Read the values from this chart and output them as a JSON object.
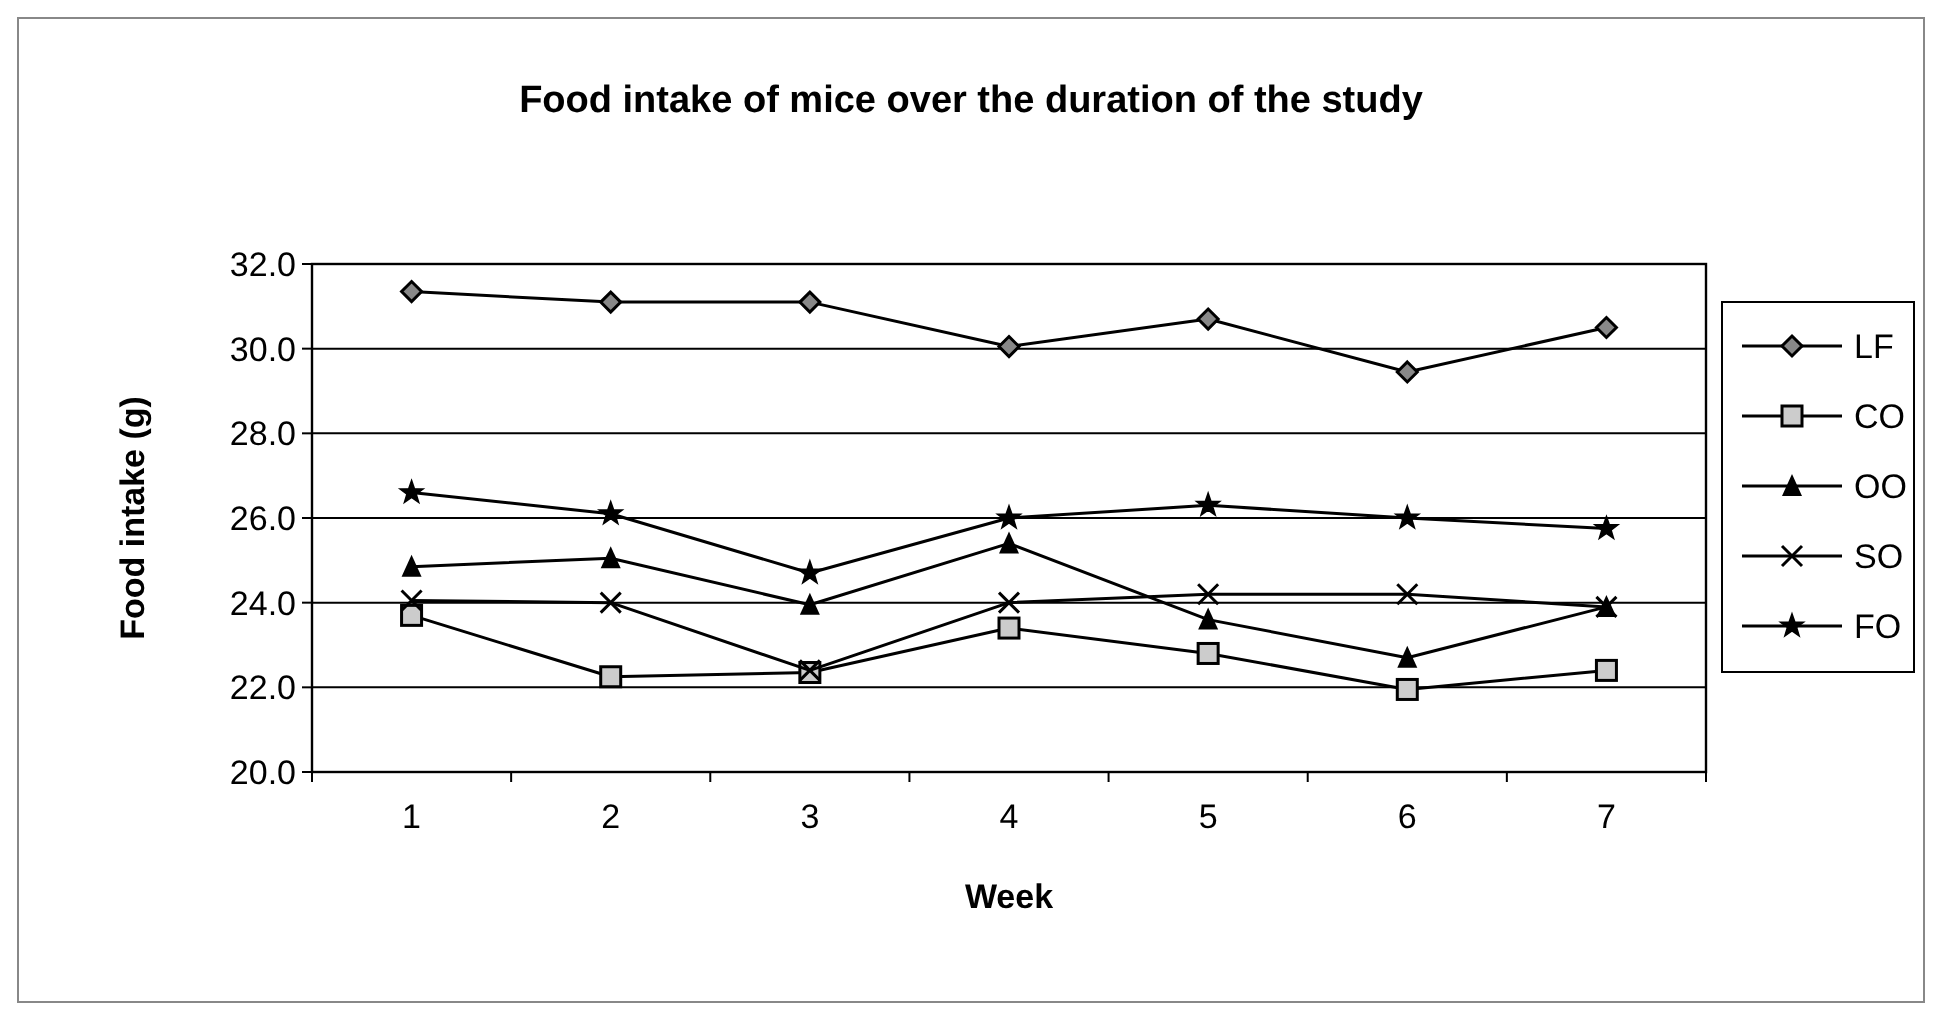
{
  "chart_data": {
    "type": "line",
    "title": "Food intake of mice over the duration of the study",
    "xlabel": "Week",
    "ylabel": "Food intake (g)",
    "categories": [
      "1",
      "2",
      "3",
      "4",
      "5",
      "6",
      "7"
    ],
    "ylim": [
      20,
      32
    ],
    "yticks": [
      {
        "value": 20,
        "label": "20.0"
      },
      {
        "value": 22,
        "label": "22.0"
      },
      {
        "value": 24,
        "label": "24.0"
      },
      {
        "value": 26,
        "label": "26.0"
      },
      {
        "value": 28,
        "label": "28.0"
      },
      {
        "value": 30,
        "label": "30.0"
      },
      {
        "value": 32,
        "label": "32.0"
      }
    ],
    "grid": "y",
    "legend": "right",
    "line_style": "solid",
    "series": [
      {
        "name": "LF",
        "color": "#000000",
        "marker": "diamond",
        "values": [
          31.35,
          31.1,
          31.1,
          30.05,
          30.7,
          29.45,
          30.5
        ]
      },
      {
        "name": "CO",
        "color": "#000000",
        "marker": "square",
        "values": [
          23.7,
          22.25,
          22.35,
          23.4,
          22.8,
          21.95,
          22.4
        ]
      },
      {
        "name": "OO",
        "color": "#000000",
        "marker": "triangle",
        "values": [
          24.85,
          25.05,
          23.95,
          25.4,
          23.6,
          22.7,
          23.9
        ]
      },
      {
        "name": "SO",
        "color": "#000000",
        "marker": "cross",
        "values": [
          24.05,
          24.0,
          22.4,
          24.0,
          24.2,
          24.2,
          23.9
        ]
      },
      {
        "name": "FO",
        "color": "#000000",
        "marker": "star",
        "values": [
          26.6,
          26.1,
          24.7,
          26.0,
          26.3,
          26.0,
          25.75
        ]
      }
    ]
  }
}
